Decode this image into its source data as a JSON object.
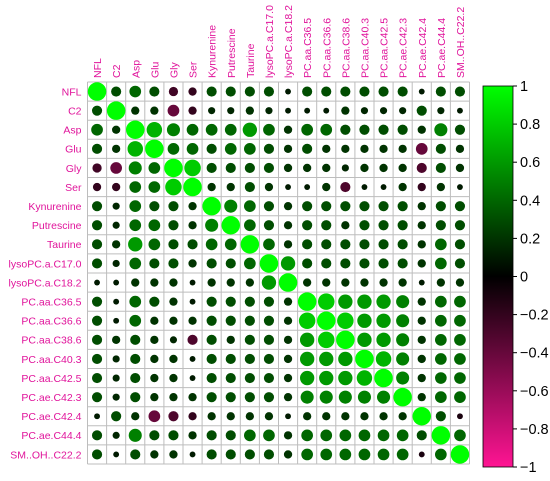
{
  "chart_data": {
    "type": "heatmap",
    "variables": [
      "NFL",
      "C2",
      "Asp",
      "Glu",
      "Gly",
      "Ser",
      "Kynurenine",
      "Putrescine",
      "Taurine",
      "lysoPC.a.C17.0",
      "lysoPC.a.C18.2",
      "PC.aa.C36.5",
      "PC.aa.C36.6",
      "PC.aa.C38.6",
      "PC.aa.C40.3",
      "PC.aa.C42.5",
      "PC.ae.C42.3",
      "PC.ae.C42.4",
      "PC.ae.C44.4",
      "SM..OH..C22.2"
    ],
    "matrix": [
      [
        1.0,
        0.3,
        0.4,
        0.3,
        -0.25,
        -0.2,
        0.3,
        0.3,
        0.3,
        0.3,
        0.1,
        0.3,
        0.3,
        0.3,
        0.3,
        0.3,
        0.3,
        0.1,
        0.3,
        0.3
      ],
      [
        0.3,
        1.0,
        0.2,
        0.2,
        -0.4,
        -0.2,
        0.15,
        0.15,
        0.2,
        0.15,
        0.1,
        0.1,
        0.1,
        0.2,
        0.15,
        0.15,
        0.15,
        0.3,
        0.15,
        0.1
      ],
      [
        0.4,
        0.2,
        1.0,
        0.7,
        0.5,
        0.4,
        0.4,
        0.4,
        0.6,
        0.4,
        0.2,
        0.4,
        0.4,
        0.3,
        0.3,
        0.3,
        0.3,
        0.2,
        0.5,
        0.3
      ],
      [
        0.3,
        0.2,
        0.7,
        1.0,
        0.4,
        0.4,
        0.3,
        0.4,
        0.4,
        0.3,
        0.2,
        0.3,
        0.2,
        0.2,
        0.2,
        0.2,
        0.2,
        -0.4,
        0.3,
        0.2
      ],
      [
        -0.25,
        -0.4,
        0.5,
        0.4,
        1.0,
        0.8,
        0.3,
        0.3,
        0.3,
        0.3,
        0.2,
        0.2,
        0.2,
        0.15,
        0.2,
        0.2,
        0.2,
        -0.3,
        0.3,
        0.2
      ],
      [
        -0.2,
        -0.2,
        0.4,
        0.4,
        0.8,
        1.0,
        0.2,
        0.2,
        0.3,
        0.2,
        0.1,
        0.1,
        0.2,
        -0.3,
        0.1,
        0.1,
        0.2,
        -0.2,
        0.2,
        0.1
      ],
      [
        0.3,
        0.15,
        0.4,
        0.3,
        0.3,
        0.2,
        1.0,
        0.5,
        0.4,
        0.3,
        0.2,
        0.3,
        0.3,
        0.3,
        0.3,
        0.3,
        0.3,
        0.2,
        0.3,
        0.3
      ],
      [
        0.3,
        0.15,
        0.4,
        0.4,
        0.3,
        0.2,
        0.5,
        1.0,
        0.4,
        0.3,
        0.2,
        0.3,
        0.3,
        0.2,
        0.3,
        0.3,
        0.3,
        0.2,
        0.3,
        0.3
      ],
      [
        0.3,
        0.2,
        0.6,
        0.4,
        0.3,
        0.3,
        0.4,
        0.4,
        1.0,
        0.4,
        0.2,
        0.3,
        0.3,
        0.3,
        0.3,
        0.3,
        0.3,
        0.2,
        0.4,
        0.3
      ],
      [
        0.3,
        0.15,
        0.4,
        0.3,
        0.3,
        0.2,
        0.3,
        0.3,
        0.4,
        1.0,
        0.6,
        0.3,
        0.3,
        0.3,
        0.3,
        0.3,
        0.3,
        0.2,
        0.4,
        0.3
      ],
      [
        0.1,
        0.1,
        0.2,
        0.2,
        0.2,
        0.1,
        0.2,
        0.2,
        0.2,
        0.6,
        1.0,
        0.2,
        0.2,
        0.2,
        0.2,
        0.2,
        0.2,
        0.1,
        0.2,
        0.2
      ],
      [
        0.3,
        0.1,
        0.4,
        0.3,
        0.2,
        0.1,
        0.3,
        0.3,
        0.3,
        0.3,
        0.2,
        1.0,
        0.8,
        0.6,
        0.6,
        0.6,
        0.5,
        0.2,
        0.4,
        0.4
      ],
      [
        0.3,
        0.1,
        0.4,
        0.2,
        0.2,
        0.2,
        0.3,
        0.3,
        0.3,
        0.3,
        0.2,
        0.8,
        1.0,
        0.8,
        0.6,
        0.6,
        0.5,
        0.2,
        0.4,
        0.4
      ],
      [
        0.3,
        0.2,
        0.3,
        0.2,
        0.15,
        -0.3,
        0.3,
        0.2,
        0.3,
        0.3,
        0.2,
        0.6,
        0.8,
        1.0,
        0.6,
        0.6,
        0.5,
        0.2,
        0.4,
        0.4
      ],
      [
        0.3,
        0.15,
        0.3,
        0.2,
        0.2,
        0.1,
        0.3,
        0.3,
        0.3,
        0.3,
        0.2,
        0.6,
        0.6,
        0.6,
        1.0,
        0.7,
        0.5,
        0.2,
        0.4,
        0.4
      ],
      [
        0.3,
        0.15,
        0.3,
        0.2,
        0.2,
        0.1,
        0.3,
        0.3,
        0.3,
        0.3,
        0.2,
        0.6,
        0.6,
        0.6,
        0.7,
        1.0,
        0.5,
        0.2,
        0.4,
        0.4
      ],
      [
        0.3,
        0.15,
        0.3,
        0.2,
        0.2,
        0.2,
        0.3,
        0.3,
        0.3,
        0.3,
        0.2,
        0.5,
        0.5,
        0.5,
        0.5,
        0.5,
        1.0,
        0.2,
        0.4,
        0.4
      ],
      [
        0.1,
        0.3,
        0.2,
        -0.4,
        -0.3,
        -0.2,
        0.2,
        0.2,
        0.2,
        0.2,
        0.1,
        0.2,
        0.2,
        0.2,
        0.2,
        0.2,
        0.2,
        1.0,
        0.3,
        -0.1
      ],
      [
        0.3,
        0.15,
        0.5,
        0.3,
        0.3,
        0.2,
        0.3,
        0.3,
        0.4,
        0.4,
        0.2,
        0.4,
        0.4,
        0.4,
        0.4,
        0.4,
        0.4,
        0.3,
        1.0,
        0.4
      ],
      [
        0.3,
        0.1,
        0.3,
        0.2,
        0.2,
        0.1,
        0.3,
        0.3,
        0.3,
        0.3,
        0.2,
        0.4,
        0.4,
        0.4,
        0.4,
        0.4,
        0.4,
        -0.1,
        0.4,
        1.0
      ]
    ],
    "colorbar": {
      "range": [
        -1,
        1
      ],
      "ticks": [
        "1",
        "0.8",
        "0.6",
        "0.4",
        "0.2",
        "0",
        "−0.2",
        "−0.4",
        "−0.6",
        "−0.8",
        "−1"
      ],
      "tick_values": [
        1,
        0.8,
        0.6,
        0.4,
        0.2,
        0,
        -0.2,
        -0.4,
        -0.6,
        -0.8,
        -1
      ],
      "colors": {
        "positive": "#00ff00",
        "zero": "#000000",
        "negative": "#ff1493"
      }
    },
    "label_color": "#e0149b",
    "grid": true,
    "legend": "right"
  }
}
